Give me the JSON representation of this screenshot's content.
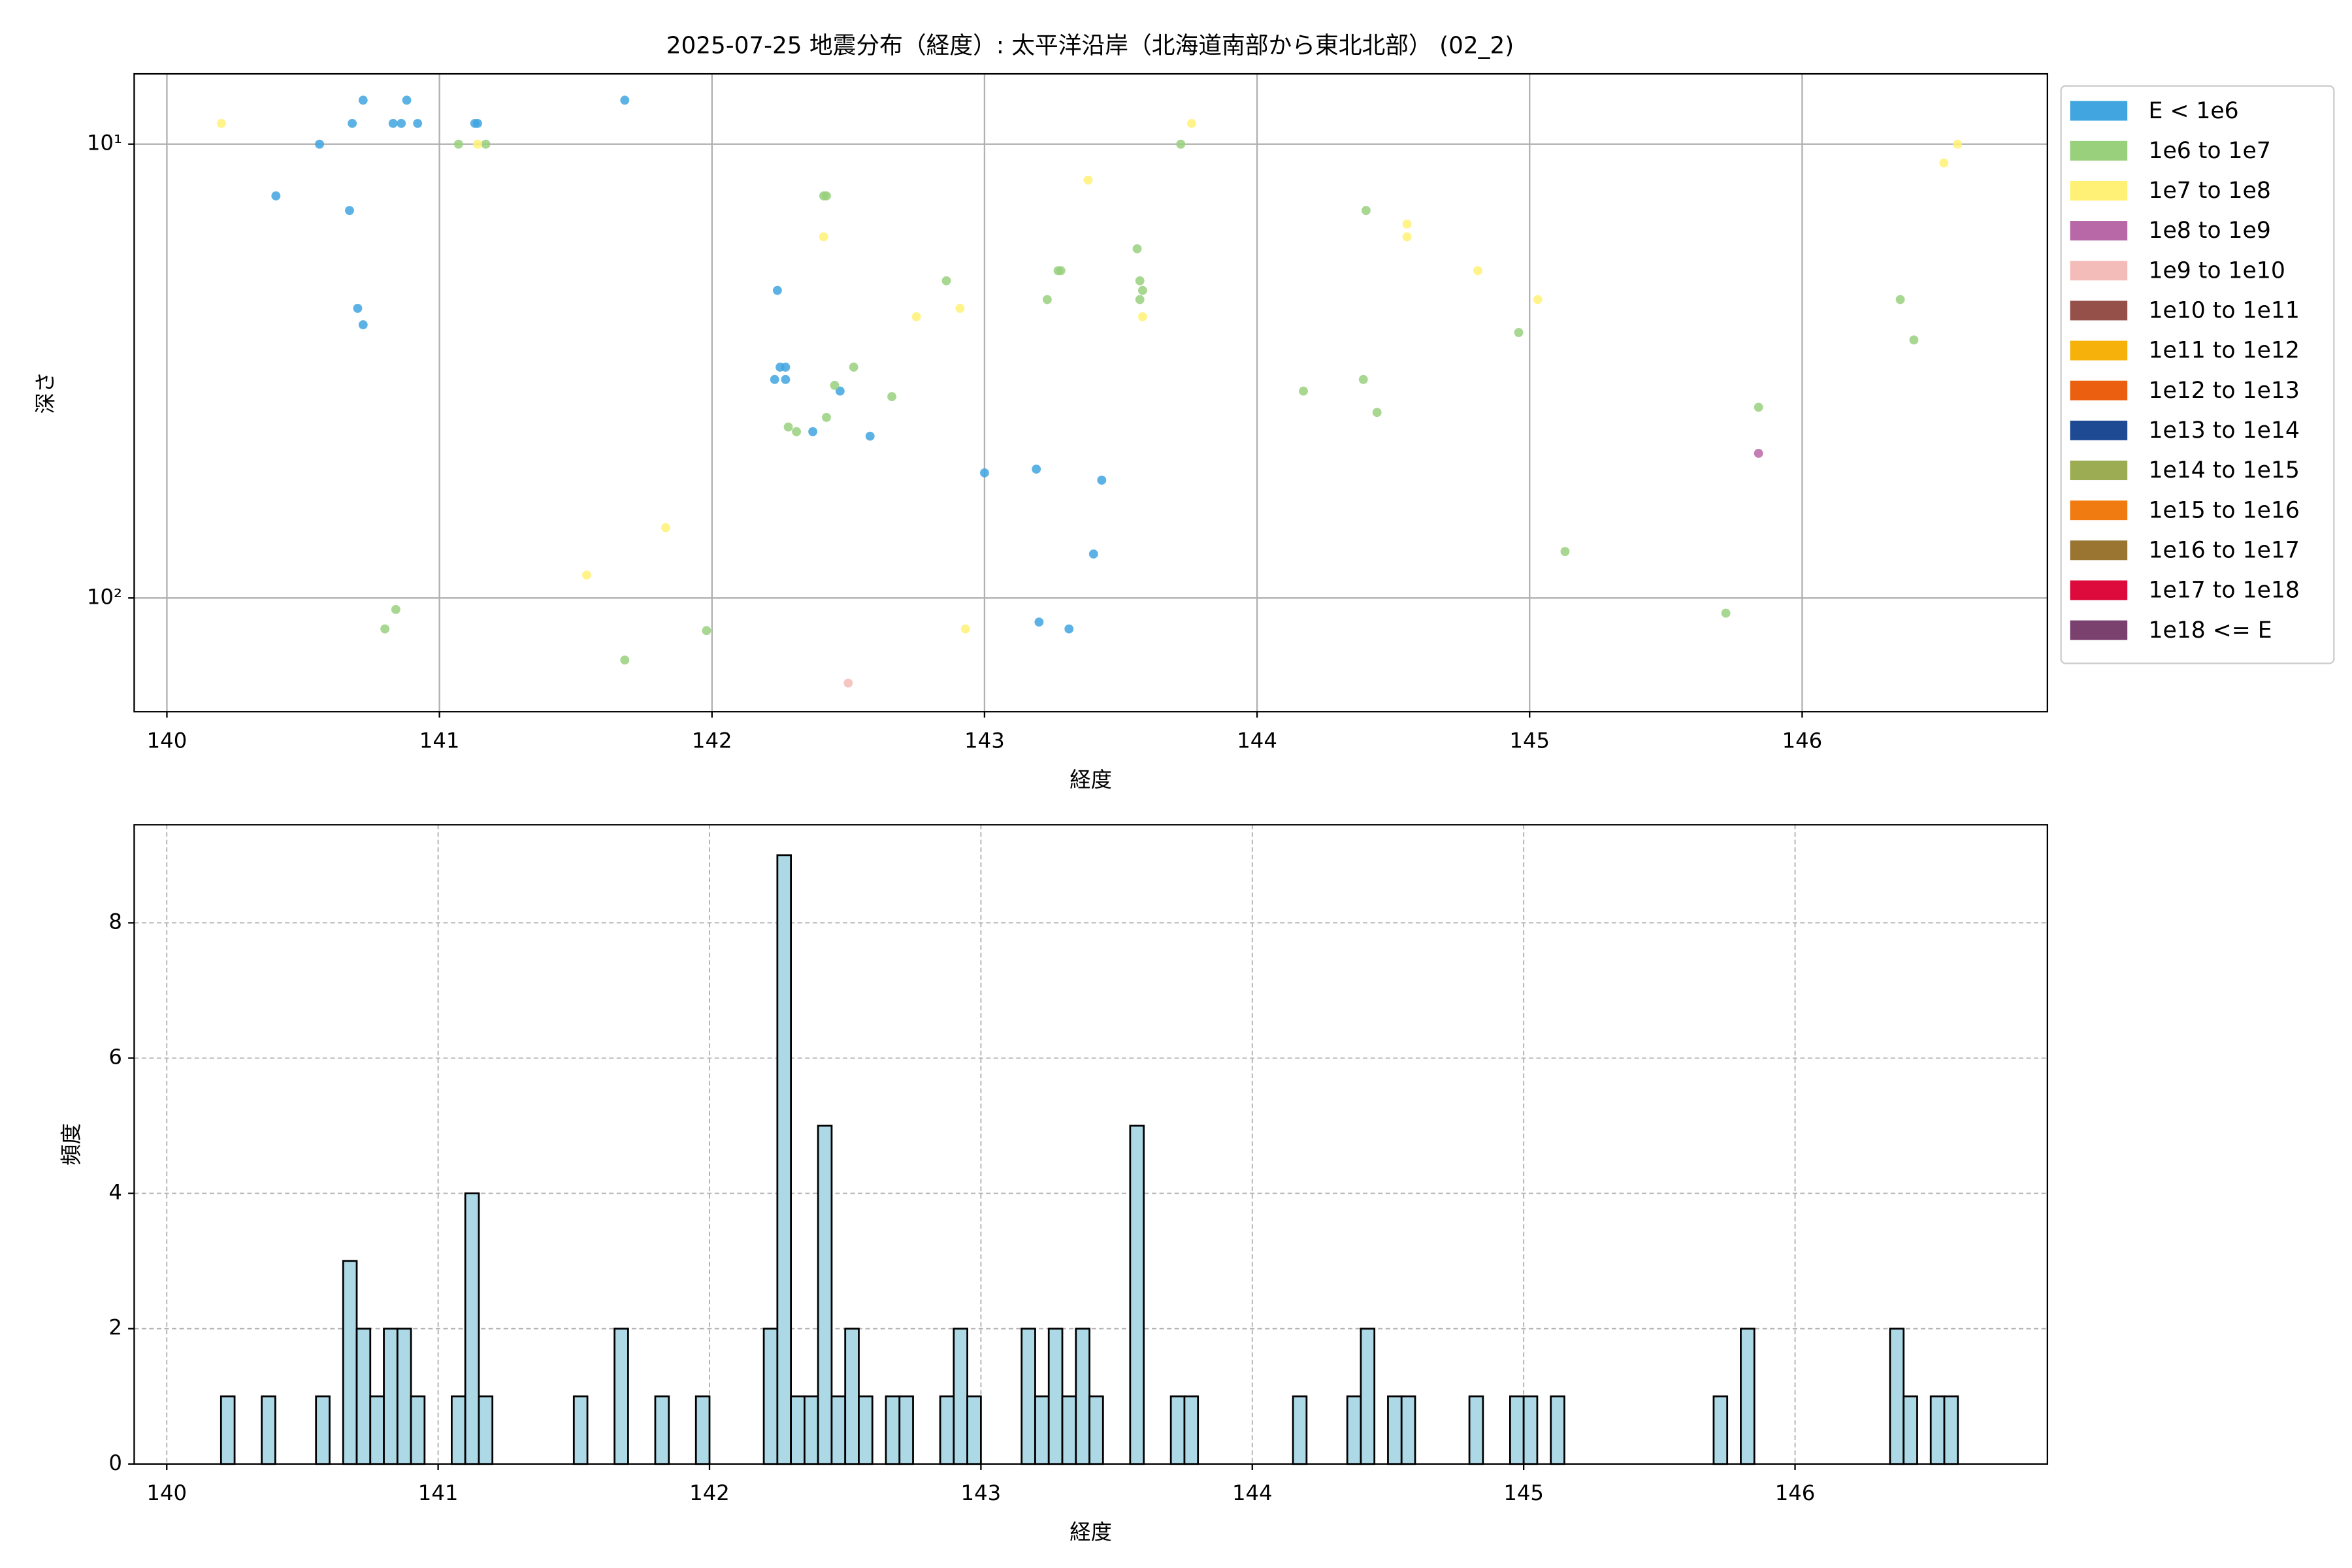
{
  "chart_data": [
    {
      "type": "scatter",
      "title": "2025-07-25 地震分布（経度）: 太平洋沿岸（北海道南部から東北北部） (02_2)",
      "x_label": "経度",
      "y_label": "深さ",
      "xlim": [
        139.88,
        146.9
      ],
      "xticks": [
        140,
        141,
        142,
        143,
        144,
        145,
        146
      ],
      "ylim": [
        7,
        178
      ],
      "y_scale": "log",
      "invert_y": true,
      "yticks": [
        {
          "value": 10,
          "label": "10¹"
        },
        {
          "value": 100,
          "label": "10²"
        }
      ],
      "grid": true,
      "legend": "outside upper right",
      "series": [
        {
          "name": "E < 1e6",
          "color": "#41a5e0",
          "x": [
            140.4,
            140.56,
            140.67,
            140.68,
            140.72,
            140.7,
            140.72,
            140.83,
            140.86,
            140.88,
            140.92,
            141.13,
            141.14,
            141.68,
            142.24,
            142.23,
            142.25,
            142.27,
            142.27,
            142.47,
            142.37,
            142.58,
            143.0,
            143.19,
            143.43,
            143.4,
            143.2,
            143.31
          ],
          "values": [
            13,
            10,
            14,
            9,
            8,
            23,
            25,
            9,
            9,
            8,
            9,
            9,
            9,
            8,
            21,
            33,
            31,
            31,
            33,
            35,
            43,
            44,
            53,
            52,
            55,
            80,
            113,
            117
          ]
        },
        {
          "name": "1e6 to 1e7",
          "color": "#98d07c",
          "x": [
            141.07,
            141.17,
            142.41,
            142.42,
            142.86,
            143.27,
            143.28,
            143.23,
            143.56,
            143.57,
            143.58,
            143.57,
            143.72,
            142.52,
            142.45,
            142.66,
            142.42,
            142.28,
            142.31,
            144.17,
            144.39,
            144.44,
            144.4,
            144.96,
            145.13,
            145.72,
            145.84,
            146.36,
            146.41,
            140.84,
            140.8,
            141.68,
            141.98
          ],
          "values": [
            10,
            10,
            13,
            13,
            20,
            19,
            19,
            22,
            17,
            20,
            21,
            22,
            10,
            31,
            34,
            36,
            40,
            42,
            43,
            35,
            33,
            39,
            14,
            26,
            79,
            108,
            38,
            22,
            27,
            106,
            117,
            137,
            118
          ]
        },
        {
          "name": "1e7 to 1e8",
          "color": "#fff176",
          "x": [
            140.2,
            141.14,
            142.41,
            142.75,
            142.91,
            143.38,
            143.58,
            143.76,
            144.55,
            144.55,
            144.81,
            145.03,
            146.52,
            146.57,
            141.83,
            141.54,
            142.93
          ],
          "values": [
            9,
            10,
            16,
            24,
            23,
            12,
            24,
            9,
            15,
            16,
            19,
            22,
            11,
            10,
            70,
            89,
            117
          ]
        },
        {
          "name": "1e8 to 1e9",
          "color": "#b867a7",
          "x": [
            145.84
          ],
          "values": [
            48
          ]
        },
        {
          "name": "1e9 to 1e10",
          "color": "#f4bcb8",
          "x": [
            142.5
          ],
          "values": [
            154
          ]
        },
        {
          "name": "1e10 to 1e11",
          "color": "#955049",
          "x": [],
          "values": []
        },
        {
          "name": "1e11 to 1e12",
          "color": "#f6b20a",
          "x": [],
          "values": []
        },
        {
          "name": "1e12 to 1e13",
          "color": "#ea6010",
          "x": [],
          "values": []
        },
        {
          "name": "1e13 to 1e14",
          "color": "#1e4a94",
          "x": [],
          "values": []
        },
        {
          "name": "1e14 to 1e15",
          "color": "#9bac52",
          "x": [],
          "values": []
        },
        {
          "name": "1e15 to 1e16",
          "color": "#f07b10",
          "x": [],
          "values": []
        },
        {
          "name": "1e16 to 1e17",
          "color": "#9a7431",
          "x": [],
          "values": []
        },
        {
          "name": "1e17 to 1e18",
          "color": "#dc0b3b",
          "x": [],
          "values": []
        },
        {
          "name": "1e18 <= E",
          "color": "#7a416e",
          "x": [],
          "values": []
        }
      ]
    },
    {
      "type": "histogram",
      "x_label": "経度",
      "y_label": "頻度",
      "xlim": [
        139.88,
        146.93
      ],
      "xticks": [
        140,
        141,
        142,
        143,
        144,
        145,
        146
      ],
      "ylim": [
        0,
        9.45
      ],
      "yticks": [
        0,
        2,
        4,
        6,
        8
      ],
      "grid": true,
      "color": "#add8e6",
      "edge_color": "#000000",
      "bins": [
        140.2,
        140.25,
        140.3,
        140.35,
        140.4,
        140.45,
        140.5,
        140.55,
        140.6,
        140.65,
        140.7,
        140.75,
        140.8,
        140.85,
        140.9,
        140.95,
        141,
        141.05,
        141.1,
        141.15,
        141.2,
        141.25,
        141.3,
        141.35,
        141.4,
        141.45,
        141.5,
        141.55,
        141.6,
        141.65,
        141.7,
        141.75,
        141.8,
        141.85,
        141.9,
        141.95,
        142,
        142.05,
        142.1,
        142.15,
        142.2,
        142.25,
        142.3,
        142.35,
        142.4,
        142.45,
        142.5,
        142.55,
        142.6,
        142.65,
        142.7,
        142.75,
        142.8,
        142.85,
        142.9,
        142.95,
        143,
        143.05,
        143.1,
        143.15,
        143.2,
        143.25,
        143.3,
        143.35,
        143.4,
        143.45,
        143.5,
        143.55,
        143.6,
        143.65,
        143.7,
        143.75,
        143.8,
        143.85,
        143.9,
        143.95,
        144,
        144.05,
        144.1,
        144.15,
        144.2,
        144.25,
        144.3,
        144.35,
        144.4,
        144.45,
        144.5,
        144.55,
        144.6,
        144.65,
        144.7,
        144.75,
        144.8,
        144.85,
        144.9,
        144.95,
        145,
        145.05,
        145.1,
        145.15,
        145.2,
        145.25,
        145.3,
        145.35,
        145.4,
        145.45,
        145.5,
        145.55,
        145.6,
        145.65,
        145.7,
        145.75,
        145.8,
        145.85,
        145.9,
        145.95,
        146,
        146.05,
        146.1,
        146.15,
        146.2,
        146.25,
        146.3,
        146.35,
        146.4,
        146.45,
        146.5,
        146.55,
        146.6
      ],
      "values": [
        1,
        0,
        0,
        1,
        0,
        0,
        0,
        1,
        0,
        3,
        2,
        1,
        2,
        2,
        1,
        0,
        0,
        1,
        4,
        1,
        0,
        0,
        0,
        0,
        0,
        0,
        1,
        0,
        0,
        2,
        0,
        0,
        1,
        0,
        0,
        1,
        0,
        0,
        0,
        0,
        2,
        9,
        1,
        1,
        5,
        1,
        2,
        1,
        0,
        1,
        1,
        0,
        0,
        1,
        2,
        1,
        0,
        0,
        0,
        2,
        1,
        2,
        1,
        2,
        1,
        0,
        0,
        5,
        0,
        0,
        1,
        1,
        0,
        0,
        0,
        0,
        0,
        0,
        0,
        1,
        0,
        0,
        0,
        1,
        2,
        0,
        1,
        1,
        0,
        0,
        0,
        0,
        1,
        0,
        0,
        1,
        1,
        0,
        1,
        0,
        0,
        0,
        0,
        0,
        0,
        0,
        0,
        0,
        0,
        0,
        1,
        0,
        2,
        0,
        0,
        0,
        0,
        0,
        0,
        0,
        0,
        0,
        0,
        2,
        1,
        0,
        1,
        1
      ]
    }
  ]
}
